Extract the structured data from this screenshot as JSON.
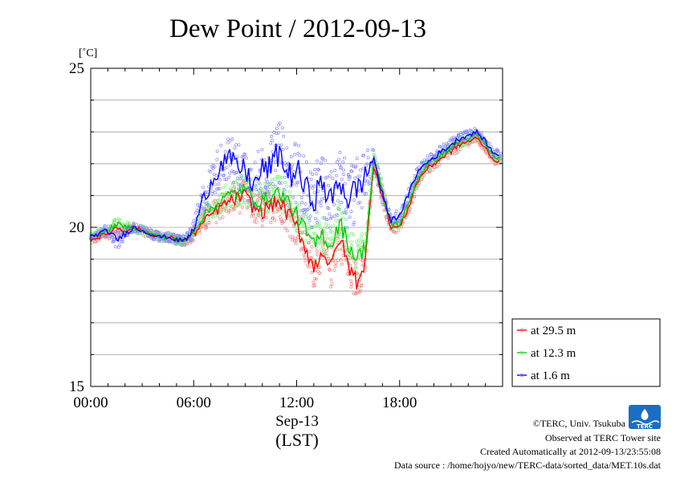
{
  "chart_data": {
    "type": "line",
    "title": "Dew Point / 2012-09-13",
    "yunit": "[˚C]",
    "xlabel_date": "Sep-13",
    "xlabel_tz": "(LST)",
    "xticks": [
      "00:00",
      "06:00",
      "12:00",
      "18:00"
    ],
    "xtick_hours": [
      0,
      6,
      12,
      18
    ],
    "yticks": [
      "15",
      "20",
      "25"
    ],
    "ytick_values": [
      15,
      20,
      25
    ],
    "xlim": [
      0,
      24
    ],
    "ylim": [
      15,
      25
    ],
    "grid": true,
    "legend_position": "bottom-right outside",
    "series": [
      {
        "name": "at 29.5 m",
        "color": "#ff0000",
        "scatter_color": "#f08080",
        "x": [
          0,
          0.5,
          1,
          1.5,
          2,
          2.5,
          3,
          3.5,
          4,
          4.5,
          5,
          5.5,
          6,
          6.5,
          7,
          7.5,
          8,
          8.5,
          9,
          9.5,
          10,
          10.5,
          11,
          11.5,
          12,
          12.5,
          13,
          13.5,
          14,
          14.5,
          15,
          15.5,
          16,
          16.5,
          17,
          17.5,
          18,
          18.5,
          19,
          19.5,
          20,
          20.5,
          21,
          21.5,
          22,
          22.5,
          23,
          23.5
        ],
        "values": [
          19.6,
          19.7,
          19.8,
          20.0,
          19.9,
          20.0,
          19.9,
          19.8,
          19.7,
          19.7,
          19.6,
          19.6,
          19.8,
          20.1,
          20.4,
          20.6,
          20.8,
          20.9,
          21.0,
          20.6,
          20.5,
          20.7,
          20.8,
          20.4,
          20.0,
          19.4,
          18.7,
          19.3,
          18.7,
          19.7,
          18.8,
          18.3,
          18.9,
          22.0,
          21.0,
          20.0,
          20.0,
          20.6,
          21.4,
          21.8,
          22.0,
          22.2,
          22.4,
          22.6,
          22.7,
          22.8,
          22.5,
          22.1
        ],
        "spread": [
          0.15,
          0.15,
          0.2,
          0.2,
          0.2,
          0.15,
          0.15,
          0.15,
          0.15,
          0.15,
          0.15,
          0.15,
          0.25,
          0.3,
          0.35,
          0.4,
          0.4,
          0.5,
          0.5,
          0.5,
          0.55,
          0.55,
          0.55,
          0.6,
          0.6,
          0.6,
          0.65,
          0.6,
          0.65,
          0.6,
          0.65,
          0.6,
          0.5,
          0.3,
          0.3,
          0.2,
          0.2,
          0.2,
          0.2,
          0.2,
          0.2,
          0.2,
          0.2,
          0.2,
          0.15,
          0.15,
          0.15,
          0.15
        ]
      },
      {
        "name": "at 12.3 m",
        "color": "#00cc00",
        "scatter_color": "#80ee80",
        "x": [
          0,
          0.5,
          1,
          1.5,
          2,
          2.5,
          3,
          3.5,
          4,
          4.5,
          5,
          5.5,
          6,
          6.5,
          7,
          7.5,
          8,
          8.5,
          9,
          9.5,
          10,
          10.5,
          11,
          11.5,
          12,
          12.5,
          13,
          13.5,
          14,
          14.5,
          15,
          15.5,
          16,
          16.5,
          17,
          17.5,
          18,
          18.5,
          19,
          19.5,
          20,
          20.5,
          21,
          21.5,
          22,
          22.5,
          23,
          23.5
        ],
        "values": [
          19.7,
          19.8,
          19.9,
          20.1,
          20.0,
          20.0,
          19.9,
          19.8,
          19.7,
          19.7,
          19.6,
          19.6,
          19.9,
          20.3,
          20.6,
          20.8,
          21.0,
          21.1,
          21.2,
          20.9,
          20.8,
          21.0,
          21.1,
          20.8,
          20.4,
          19.9,
          19.4,
          19.8,
          19.4,
          20.2,
          19.5,
          19.0,
          19.4,
          22.1,
          21.1,
          20.1,
          20.1,
          20.7,
          21.5,
          21.9,
          22.1,
          22.3,
          22.5,
          22.7,
          22.8,
          22.9,
          22.6,
          22.2
        ],
        "spread": [
          0.15,
          0.15,
          0.15,
          0.2,
          0.2,
          0.15,
          0.15,
          0.15,
          0.15,
          0.15,
          0.15,
          0.15,
          0.25,
          0.3,
          0.35,
          0.4,
          0.4,
          0.5,
          0.5,
          0.5,
          0.55,
          0.55,
          0.55,
          0.6,
          0.6,
          0.6,
          0.65,
          0.6,
          0.65,
          0.6,
          0.65,
          0.6,
          0.5,
          0.3,
          0.3,
          0.2,
          0.2,
          0.2,
          0.2,
          0.2,
          0.2,
          0.2,
          0.2,
          0.2,
          0.15,
          0.15,
          0.15,
          0.15
        ]
      },
      {
        "name": "at 1.6 m",
        "color": "#0000ff",
        "scatter_color": "#8888ff",
        "x": [
          0,
          0.5,
          1,
          1.5,
          2,
          2.5,
          3,
          3.5,
          4,
          4.5,
          5,
          5.5,
          6,
          6.5,
          7,
          7.5,
          8,
          8.5,
          9,
          9.5,
          10,
          10.5,
          11,
          11.5,
          12,
          12.5,
          13,
          13.5,
          14,
          14.5,
          15,
          15.5,
          16,
          16.5,
          17,
          17.5,
          18,
          18.5,
          19,
          19.5,
          20,
          20.5,
          21,
          21.5,
          22,
          22.5,
          23,
          23.5
        ],
        "values": [
          19.7,
          19.8,
          19.9,
          19.6,
          19.8,
          20.0,
          19.9,
          19.8,
          19.7,
          19.7,
          19.6,
          19.6,
          19.9,
          20.8,
          21.4,
          21.9,
          22.2,
          21.9,
          21.8,
          21.3,
          21.8,
          21.9,
          22.4,
          21.6,
          21.8,
          21.2,
          20.9,
          21.4,
          20.8,
          21.5,
          20.9,
          21.2,
          21.6,
          22.2,
          21.0,
          20.2,
          20.4,
          21.0,
          21.7,
          22.0,
          22.2,
          22.4,
          22.6,
          22.8,
          22.9,
          23.0,
          22.7,
          22.3
        ],
        "spread": [
          0.15,
          0.15,
          0.2,
          0.3,
          0.2,
          0.15,
          0.15,
          0.15,
          0.15,
          0.15,
          0.15,
          0.2,
          0.3,
          0.5,
          0.6,
          0.7,
          0.7,
          0.8,
          0.8,
          0.8,
          0.9,
          0.9,
          1.0,
          1.0,
          1.0,
          1.0,
          1.0,
          1.0,
          1.0,
          1.0,
          1.0,
          1.0,
          0.8,
          0.3,
          0.3,
          0.2,
          0.2,
          0.2,
          0.2,
          0.2,
          0.2,
          0.2,
          0.2,
          0.2,
          0.15,
          0.15,
          0.15,
          0.15
        ]
      }
    ]
  },
  "footer": {
    "copyright": "©TERC, Univ. Tsukuba",
    "observed": "Observed at TERC Tower site",
    "created": "Created Automatically at 2012-09-13/23:55:08",
    "source": "Data source : /home/hojyo/new/TERC-data/sorted_data/MET.10s.dat"
  },
  "logo": {
    "text": "TERC",
    "color": "#1a6fc4"
  }
}
